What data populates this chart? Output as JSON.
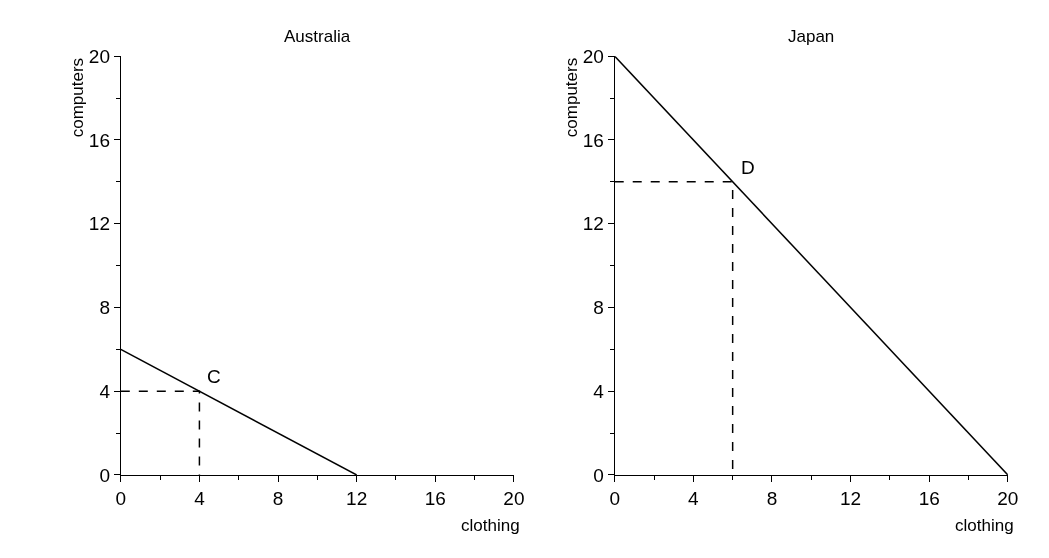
{
  "chart_data": [
    {
      "type": "line",
      "title": "Australia",
      "xlabel": "clothing",
      "ylabel": "computers",
      "xlim": [
        0,
        20
      ],
      "ylim": [
        0,
        20
      ],
      "xticks": [
        0,
        4,
        8,
        12,
        16,
        20
      ],
      "yticks": [
        0,
        4,
        8,
        12,
        16,
        20
      ],
      "marker": "none",
      "series": [
        {
          "color": "#000000",
          "x": [
            0,
            12
          ],
          "values": [
            6,
            0
          ],
          "line_style": "solid"
        },
        {
          "color": "#000000",
          "x": [
            0,
            4,
            4
          ],
          "values": [
            4,
            4,
            0
          ],
          "line_style": "dashed"
        }
      ],
      "annotations": [
        {
          "text": "C",
          "x": 4,
          "y": 4
        }
      ]
    },
    {
      "type": "line",
      "title": "Japan",
      "xlabel": "clothing",
      "ylabel": "computers",
      "xlim": [
        0,
        20
      ],
      "ylim": [
        0,
        20
      ],
      "xticks": [
        0,
        4,
        8,
        12,
        16,
        20
      ],
      "yticks": [
        0,
        4,
        8,
        12,
        16,
        20
      ],
      "marker": "none",
      "series": [
        {
          "color": "#000000",
          "x": [
            0,
            20
          ],
          "values": [
            20,
            0
          ],
          "line_style": "solid"
        },
        {
          "color": "#000000",
          "x": [
            0,
            6,
            6
          ],
          "values": [
            14,
            14,
            0
          ],
          "line_style": "dashed"
        }
      ],
      "annotations": [
        {
          "text": "D",
          "x": 6,
          "y": 14
        }
      ]
    }
  ]
}
